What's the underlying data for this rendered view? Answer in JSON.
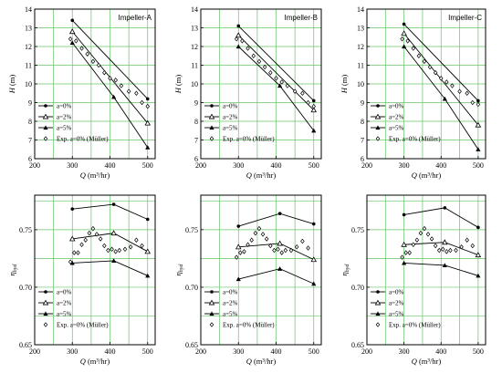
{
  "chart_data": [
    {
      "type": "line",
      "title": "Impeller-A",
      "xlabel": "Q",
      "xunit": "(m³/hr)",
      "ylabel": "H",
      "yunit": "(m)",
      "xlim": [
        200,
        520
      ],
      "ylim": [
        6,
        14
      ],
      "xticks": [
        "200",
        "300",
        "400",
        "500"
      ],
      "yticks": [
        "6",
        "7",
        "8",
        "9",
        "10",
        "11",
        "12",
        "13",
        "14"
      ],
      "grid": true,
      "legend_position": "bottom-left",
      "series": [
        {
          "name": "a=0%",
          "marker": "filled-circle",
          "x": [
            300,
            500
          ],
          "y": [
            13.4,
            9.2
          ]
        },
        {
          "name": "a=2%",
          "marker": "open-triangle",
          "x": [
            300,
            500
          ],
          "y": [
            12.8,
            7.9
          ]
        },
        {
          "name": "a=5%",
          "marker": "filled-triangle",
          "x": [
            300,
            410,
            500
          ],
          "y": [
            12.2,
            9.3,
            6.6
          ]
        },
        {
          "name": "Exp. a=0% (Müller)",
          "marker": "open-diamond",
          "style": "scatter",
          "x": [
            295,
            310,
            325,
            340,
            355,
            370,
            385,
            400,
            415,
            430,
            450,
            470,
            485,
            500
          ],
          "y": [
            12.4,
            12.3,
            11.9,
            11.6,
            11.2,
            11.0,
            10.6,
            10.3,
            10.2,
            9.9,
            9.6,
            9.5,
            9.0,
            8.8
          ]
        }
      ]
    },
    {
      "type": "line",
      "title": "Impeller-B",
      "xlabel": "Q",
      "xunit": "(m³/hr)",
      "ylabel": "H",
      "yunit": "(m)",
      "xlim": [
        200,
        520
      ],
      "ylim": [
        6,
        14
      ],
      "xticks": [
        "200",
        "300",
        "400",
        "500"
      ],
      "yticks": [
        "6",
        "7",
        "8",
        "9",
        "10",
        "11",
        "12",
        "13",
        "14"
      ],
      "grid": true,
      "legend_position": "bottom-left",
      "series": [
        {
          "name": "a=0%",
          "marker": "filled-circle",
          "x": [
            300,
            500
          ],
          "y": [
            13.1,
            9.1
          ]
        },
        {
          "name": "a=2%",
          "marker": "open-triangle",
          "x": [
            300,
            500
          ],
          "y": [
            12.6,
            8.6
          ]
        },
        {
          "name": "a=5%",
          "marker": "filled-triangle",
          "x": [
            300,
            410,
            500
          ],
          "y": [
            12.0,
            9.9,
            7.5
          ]
        },
        {
          "name": "Exp. a=0% (Müller)",
          "marker": "open-diamond",
          "style": "scatter",
          "x": [
            295,
            310,
            325,
            340,
            355,
            370,
            385,
            400,
            415,
            430,
            450,
            470,
            485,
            500
          ],
          "y": [
            12.4,
            12.3,
            11.9,
            11.5,
            11.2,
            10.9,
            10.6,
            10.3,
            10.1,
            9.9,
            9.6,
            9.5,
            9.0,
            8.8
          ]
        }
      ]
    },
    {
      "type": "line",
      "title": "Impeller-C",
      "xlabel": "Q",
      "xunit": "(m³/hr)",
      "ylabel": "H",
      "yunit": "(m)",
      "xlim": [
        200,
        520
      ],
      "ylim": [
        6,
        14
      ],
      "xticks": [
        "200",
        "300",
        "400",
        "500"
      ],
      "yticks": [
        "6",
        "7",
        "8",
        "9",
        "10",
        "11",
        "12",
        "13",
        "14"
      ],
      "grid": true,
      "legend_position": "bottom-left",
      "series": [
        {
          "name": "a=0%",
          "marker": "filled-circle",
          "x": [
            300,
            500
          ],
          "y": [
            13.2,
            9.1
          ]
        },
        {
          "name": "a=2%",
          "marker": "open-triangle",
          "x": [
            300,
            500
          ],
          "y": [
            12.7,
            7.8
          ]
        },
        {
          "name": "a=5%",
          "marker": "filled-triangle",
          "x": [
            300,
            410,
            500
          ],
          "y": [
            12.0,
            9.2,
            6.5
          ]
        },
        {
          "name": "Exp. a=0% (Müller)",
          "marker": "open-diamond",
          "style": "scatter",
          "x": [
            295,
            310,
            325,
            340,
            355,
            370,
            385,
            400,
            415,
            430,
            450,
            470,
            485,
            500
          ],
          "y": [
            12.4,
            12.3,
            11.9,
            11.5,
            11.2,
            10.9,
            10.6,
            10.3,
            10.1,
            9.9,
            9.6,
            9.5,
            9.0,
            8.9
          ]
        }
      ]
    },
    {
      "type": "line",
      "title": "",
      "xlabel": "Q",
      "xunit": "(m³/hr)",
      "ylabel": "η",
      "ysub": "hyd",
      "yunit": "",
      "xlim": [
        200,
        520
      ],
      "ylim": [
        0.65,
        0.78
      ],
      "xticks": [
        "200",
        "300",
        "400",
        "500"
      ],
      "yticks": [
        "0.65",
        "0.70",
        "0.75"
      ],
      "ytick_values": [
        0.65,
        0.7,
        0.75
      ],
      "grid": true,
      "legend_position": "bottom-left",
      "series": [
        {
          "name": "a=0%",
          "marker": "filled-circle",
          "x": [
            300,
            410,
            500
          ],
          "y": [
            0.768,
            0.772,
            0.759
          ]
        },
        {
          "name": "a=2%",
          "marker": "open-triangle",
          "x": [
            300,
            410,
            500
          ],
          "y": [
            0.742,
            0.747,
            0.731
          ]
        },
        {
          "name": "a=5%",
          "marker": "filled-triangle",
          "x": [
            300,
            410,
            500
          ],
          "y": [
            0.721,
            0.723,
            0.71
          ]
        },
        {
          "name": "Exp. a=0% (Müller)",
          "marker": "open-diamond",
          "style": "scatter",
          "x": [
            295,
            305,
            315,
            325,
            335,
            345,
            355,
            365,
            375,
            385,
            395,
            405,
            415,
            425,
            440,
            455,
            470,
            485
          ],
          "y": [
            0.722,
            0.73,
            0.73,
            0.737,
            0.741,
            0.747,
            0.751,
            0.746,
            0.742,
            0.736,
            0.732,
            0.733,
            0.731,
            0.732,
            0.733,
            0.735,
            0.741,
            0.736
          ]
        }
      ]
    },
    {
      "type": "line",
      "title": "",
      "xlabel": "Q",
      "xunit": "(m³/hr)",
      "ylabel": "η",
      "ysub": "hyd",
      "yunit": "",
      "xlim": [
        200,
        520
      ],
      "ylim": [
        0.65,
        0.78
      ],
      "xticks": [
        "200",
        "300",
        "400",
        "500"
      ],
      "yticks": [
        "0.65",
        "0.70",
        "0.75"
      ],
      "ytick_values": [
        0.65,
        0.7,
        0.75
      ],
      "grid": true,
      "legend_position": "bottom-left",
      "series": [
        {
          "name": "a=0%",
          "marker": "filled-circle",
          "x": [
            300,
            410,
            500
          ],
          "y": [
            0.753,
            0.764,
            0.755
          ]
        },
        {
          "name": "a=2%",
          "marker": "open-triangle",
          "x": [
            300,
            410,
            500
          ],
          "y": [
            0.735,
            0.738,
            0.724
          ]
        },
        {
          "name": "a=5%",
          "marker": "filled-triangle",
          "x": [
            300,
            410,
            500
          ],
          "y": [
            0.707,
            0.716,
            0.703
          ]
        },
        {
          "name": "Exp. a=0% (Müller)",
          "marker": "open-diamond",
          "style": "scatter",
          "x": [
            295,
            305,
            315,
            325,
            335,
            345,
            355,
            365,
            375,
            385,
            395,
            405,
            415,
            425,
            440,
            455,
            470,
            485
          ],
          "y": [
            0.726,
            0.73,
            0.731,
            0.737,
            0.741,
            0.747,
            0.751,
            0.746,
            0.742,
            0.736,
            0.732,
            0.733,
            0.73,
            0.732,
            0.732,
            0.735,
            0.74,
            0.734
          ]
        }
      ]
    },
    {
      "type": "line",
      "title": "",
      "xlabel": "Q",
      "xunit": "(m³/hr)",
      "ylabel": "η",
      "ysub": "hyd",
      "yunit": "",
      "xlim": [
        200,
        520
      ],
      "ylim": [
        0.65,
        0.78
      ],
      "xticks": [
        "200",
        "300",
        "400",
        "500"
      ],
      "yticks": [
        "0.65",
        "0.70",
        "0.75"
      ],
      "ytick_values": [
        0.65,
        0.7,
        0.75
      ],
      "grid": true,
      "legend_position": "bottom-left",
      "series": [
        {
          "name": "a=0%",
          "marker": "filled-circle",
          "x": [
            300,
            410,
            500
          ],
          "y": [
            0.763,
            0.769,
            0.752
          ]
        },
        {
          "name": "a=2%",
          "marker": "open-triangle",
          "x": [
            300,
            410,
            500
          ],
          "y": [
            0.737,
            0.739,
            0.728
          ]
        },
        {
          "name": "a=5%",
          "marker": "filled-triangle",
          "x": [
            300,
            410,
            500
          ],
          "y": [
            0.721,
            0.719,
            0.71
          ]
        },
        {
          "name": "Exp. a=0% (Müller)",
          "marker": "open-diamond",
          "style": "scatter",
          "x": [
            295,
            305,
            315,
            325,
            335,
            345,
            355,
            365,
            375,
            385,
            395,
            405,
            415,
            425,
            440,
            455,
            470,
            485
          ],
          "y": [
            0.726,
            0.73,
            0.73,
            0.737,
            0.741,
            0.747,
            0.751,
            0.746,
            0.742,
            0.736,
            0.732,
            0.733,
            0.731,
            0.732,
            0.732,
            0.735,
            0.741,
            0.736
          ]
        }
      ]
    }
  ],
  "colors": {
    "grid": "#66c466",
    "axis": "#000000",
    "series": "#000000",
    "background": "#ffffff"
  }
}
